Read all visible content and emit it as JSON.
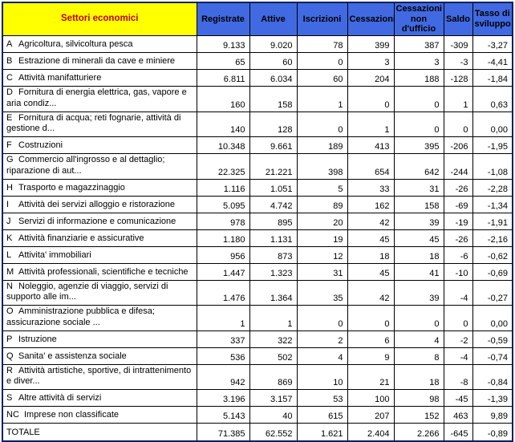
{
  "table": {
    "columns": [
      {
        "label": "Settori economici"
      },
      {
        "label": "Registrate"
      },
      {
        "label": "Attive"
      },
      {
        "label": "Iscrizioni"
      },
      {
        "label": "Cessazioni"
      },
      {
        "label": "Cessazioni non d'ufficio"
      },
      {
        "label": "Saldo"
      },
      {
        "label": "Tasso di sviluppo"
      }
    ],
    "rows": [
      {
        "code": "A",
        "name": "Agricoltura, silvicoltura pesca",
        "values": [
          "9.133",
          "9.020",
          "78",
          "399",
          "387",
          "-309",
          "-3,27"
        ]
      },
      {
        "code": "B",
        "name": "Estrazione di minerali da cave e miniere",
        "values": [
          "65",
          "60",
          "0",
          "3",
          "3",
          "-3",
          "-4,41"
        ]
      },
      {
        "code": "C",
        "name": "Attività manifatturiere",
        "values": [
          "6.811",
          "6.034",
          "60",
          "204",
          "188",
          "-128",
          "-1,84"
        ]
      },
      {
        "code": "D",
        "name": "Fornitura di energia elettrica, gas, vapore e aria condiz...",
        "values": [
          "160",
          "158",
          "1",
          "0",
          "0",
          "1",
          "0,63"
        ]
      },
      {
        "code": "E",
        "name": "Fornitura di acqua; reti fognarie, attività di gestione d...",
        "values": [
          "140",
          "128",
          "0",
          "1",
          "0",
          "0",
          "0,00"
        ]
      },
      {
        "code": "F",
        "name": "Costruzioni",
        "values": [
          "10.348",
          "9.661",
          "189",
          "413",
          "395",
          "-206",
          "-1,95"
        ]
      },
      {
        "code": "G",
        "name": "Commercio all'ingrosso e al dettaglio; riparazione di aut...",
        "values": [
          "22.325",
          "21.221",
          "398",
          "654",
          "642",
          "-244",
          "-1,08"
        ]
      },
      {
        "code": "H",
        "name": "Trasporto e magazzinaggio",
        "values": [
          "1.116",
          "1.051",
          "5",
          "33",
          "31",
          "-26",
          "-2,28"
        ]
      },
      {
        "code": "I",
        "name": "Attività dei servizi alloggio e ristorazione",
        "values": [
          "5.095",
          "4.742",
          "89",
          "162",
          "158",
          "-69",
          "-1,34"
        ]
      },
      {
        "code": "J",
        "name": "Servizi di informazione e comunicazione",
        "values": [
          "978",
          "895",
          "20",
          "42",
          "39",
          "-19",
          "-1,91"
        ]
      },
      {
        "code": "K",
        "name": "Attività finanziarie e assicurative",
        "values": [
          "1.180",
          "1.131",
          "19",
          "45",
          "45",
          "-26",
          "-2,16"
        ]
      },
      {
        "code": "L",
        "name": "Attivita' immobiliari",
        "values": [
          "956",
          "873",
          "12",
          "18",
          "18",
          "-6",
          "-0,62"
        ]
      },
      {
        "code": "M",
        "name": "Attività professionali, scientifiche e tecniche",
        "values": [
          "1.447",
          "1.323",
          "31",
          "45",
          "41",
          "-10",
          "-0,69"
        ]
      },
      {
        "code": "N",
        "name": "Noleggio, agenzie di viaggio, servizi di supporto alle im...",
        "values": [
          "1.476",
          "1.364",
          "35",
          "42",
          "39",
          "-4",
          "-0,27"
        ]
      },
      {
        "code": "O",
        "name": "Amministrazione pubblica e difesa; assicurazione sociale ...",
        "values": [
          "1",
          "1",
          "0",
          "0",
          "0",
          "0",
          "0,00"
        ]
      },
      {
        "code": "P",
        "name": "Istruzione",
        "values": [
          "337",
          "322",
          "2",
          "6",
          "4",
          "-2",
          "-0,59"
        ]
      },
      {
        "code": "Q",
        "name": "Sanita' e assistenza sociale",
        "values": [
          "536",
          "502",
          "4",
          "9",
          "8",
          "-4",
          "-0,74"
        ]
      },
      {
        "code": "R",
        "name": "Attività artistiche, sportive, di intrattenimento e diver...",
        "values": [
          "942",
          "869",
          "10",
          "21",
          "18",
          "-8",
          "-0,84"
        ]
      },
      {
        "code": "S",
        "name": "Altre attività di servizi",
        "values": [
          "3.196",
          "3.157",
          "53",
          "100",
          "98",
          "-45",
          "-1,39"
        ]
      },
      {
        "code": "NC",
        "name": "Imprese non classificate",
        "values": [
          "5.143",
          "40",
          "615",
          "207",
          "152",
          "463",
          "9,89"
        ]
      },
      {
        "code": "",
        "name": "TOTALE",
        "total": true,
        "values": [
          "71.385",
          "62.552",
          "1.621",
          "2.404",
          "2.266",
          "-645",
          "-0,89"
        ]
      }
    ]
  },
  "colors": {
    "sector_header_bg": "#FFFF00",
    "sector_header_text": "#C00000",
    "numeric_header_bg": "#4169E1",
    "numeric_header_text": "#000000",
    "body_text": "#000000",
    "outer_border": "#002060",
    "inner_border": "#000000"
  },
  "chart_data": {
    "type": "table",
    "title": "Settori economici",
    "columns": [
      "Settori economici",
      "Registrate",
      "Attive",
      "Iscrizioni",
      "Cessazioni",
      "Cessazioni non d'ufficio",
      "Saldo",
      "Tasso di sviluppo"
    ],
    "rows_note": "see table.rows for all 21 rows including TOTALE"
  }
}
